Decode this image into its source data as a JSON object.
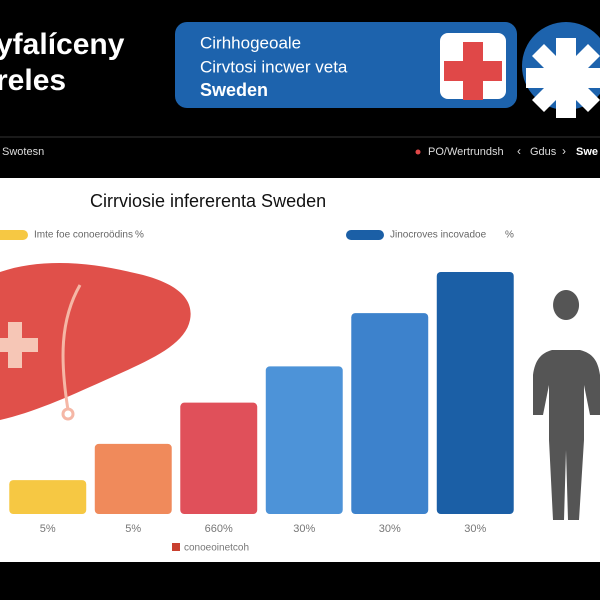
{
  "header": {
    "title_lines": [
      "yfalíceny",
      "reles"
    ],
    "banner_lines": [
      "Cirhhogeoale",
      "Cirvtosi incwer veta",
      "Sweden"
    ]
  },
  "nav": {
    "left": "Swotesn",
    "links": [
      "PO/Wertrundsh",
      "Gdus",
      "Swe"
    ]
  },
  "chart_data": {
    "type": "bar",
    "title": "Cirrviosie infererenta Sweden",
    "categories": [
      "5%",
      "5%",
      "660%",
      "30%",
      "30%",
      "30%"
    ],
    "values": [
      14,
      29,
      46,
      61,
      83,
      100
    ],
    "colors": [
      "#f6c843",
      "#f08a5b",
      "#e0505a",
      "#4d93d8",
      "#3d82cc",
      "#1b5fa6"
    ],
    "ylim": [
      0,
      100
    ],
    "legend": [
      {
        "name": "Imte foe conoeroödins",
        "color": "#f6c843",
        "suffix": "%"
      },
      {
        "name": "Jinocroves incovadoe",
        "color": "#1b5fa6",
        "suffix": "%"
      }
    ],
    "note": {
      "text": "conoeoinetcoh",
      "color": "#c9402f"
    }
  }
}
